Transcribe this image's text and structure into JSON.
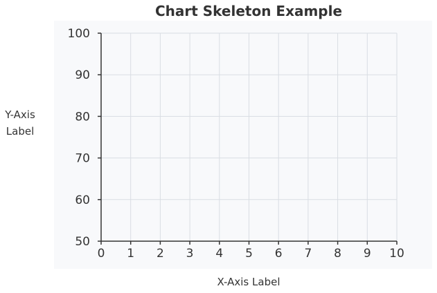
{
  "chart_data": {
    "type": "line",
    "title": "Chart Skeleton Example",
    "xlabel": "X-Axis Label",
    "ylabel_lines": [
      "Y-Axis",
      "Label"
    ],
    "xlim": [
      0,
      10
    ],
    "ylim": [
      50,
      100
    ],
    "x_ticks": [
      0,
      1,
      2,
      3,
      4,
      5,
      6,
      7,
      8,
      9,
      10
    ],
    "y_ticks": [
      50,
      60,
      70,
      80,
      90,
      100
    ],
    "series": [],
    "grid": true,
    "legend": "none"
  },
  "colors": {
    "plot_background": "#f8f9fb",
    "grid": "#d9dde3",
    "axis": "#333333",
    "text": "#333333"
  }
}
